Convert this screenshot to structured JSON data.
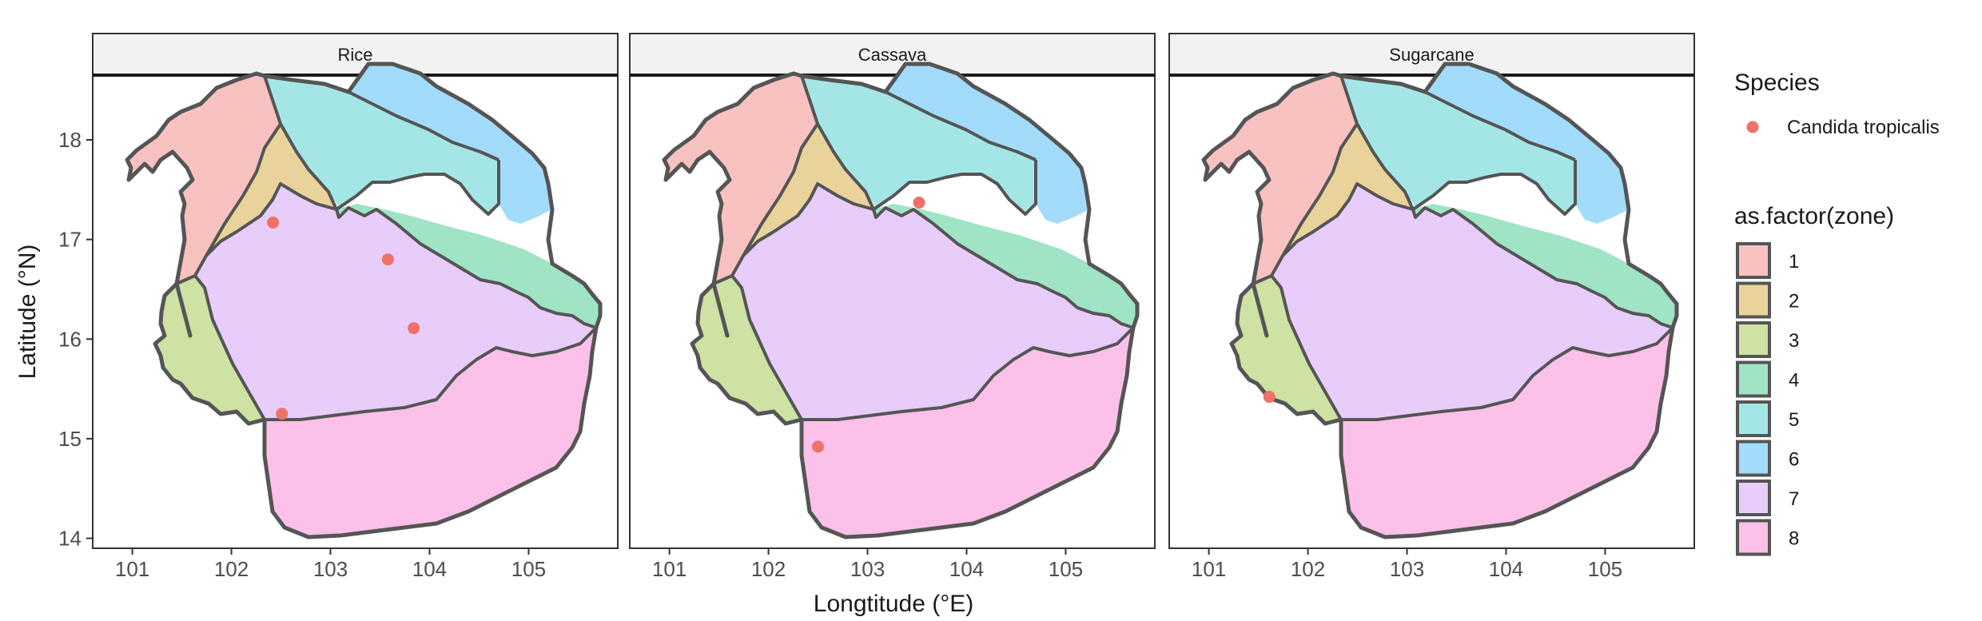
{
  "chart_data": {
    "type": "map",
    "panels": [
      {
        "title": "Rice",
        "points": [
          {
            "x": 102.42,
            "y": 17.17
          },
          {
            "x": 103.58,
            "y": 16.8
          },
          {
            "x": 103.84,
            "y": 16.11
          },
          {
            "x": 102.51,
            "y": 15.25
          }
        ]
      },
      {
        "title": "Cassava",
        "points": [
          {
            "x": 103.52,
            "y": 17.37
          },
          {
            "x": 102.5,
            "y": 14.92
          }
        ]
      },
      {
        "title": "Sugarcane",
        "points": [
          {
            "x": 101.61,
            "y": 15.42
          }
        ]
      }
    ],
    "xlabel": "Longtitude (°E)",
    "ylabel": "Latitude (°N)",
    "xticks": [
      101,
      102,
      103,
      104,
      105
    ],
    "yticks": [
      14,
      15,
      16,
      17,
      18
    ],
    "xlim": [
      100.6,
      105.9
    ],
    "ylim": [
      13.9,
      18.65
    ],
    "legend_species": {
      "title": "Species",
      "entries": [
        {
          "label": "Candida tropicalis",
          "color": "#f07167"
        }
      ]
    },
    "legend_zone": {
      "title": "as.factor(zone)",
      "entries": [
        {
          "label": "1",
          "color": "#f8c2c1"
        },
        {
          "label": "2",
          "color": "#e9d39b"
        },
        {
          "label": "3",
          "color": "#cde2a3"
        },
        {
          "label": "4",
          "color": "#9fe4c4"
        },
        {
          "label": "5",
          "color": "#a4e6e6"
        },
        {
          "label": "6",
          "color": "#a3dcfa"
        },
        {
          "label": "7",
          "color": "#e8cdfb"
        },
        {
          "label": "8",
          "color": "#fbc1e9"
        }
      ]
    },
    "grid": false,
    "legend_position": "right"
  }
}
